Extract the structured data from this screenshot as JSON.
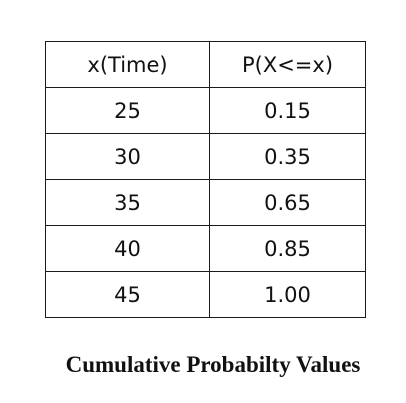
{
  "table": {
    "headers": [
      "x(Time)",
      "P(X<=x)"
    ],
    "rows": [
      [
        "25",
        "0.15"
      ],
      [
        "30",
        "0.35"
      ],
      [
        "35",
        "0.65"
      ],
      [
        "40",
        "0.85"
      ],
      [
        "45",
        "1.00"
      ]
    ]
  },
  "caption": "Cumulative Probabilty Values"
}
